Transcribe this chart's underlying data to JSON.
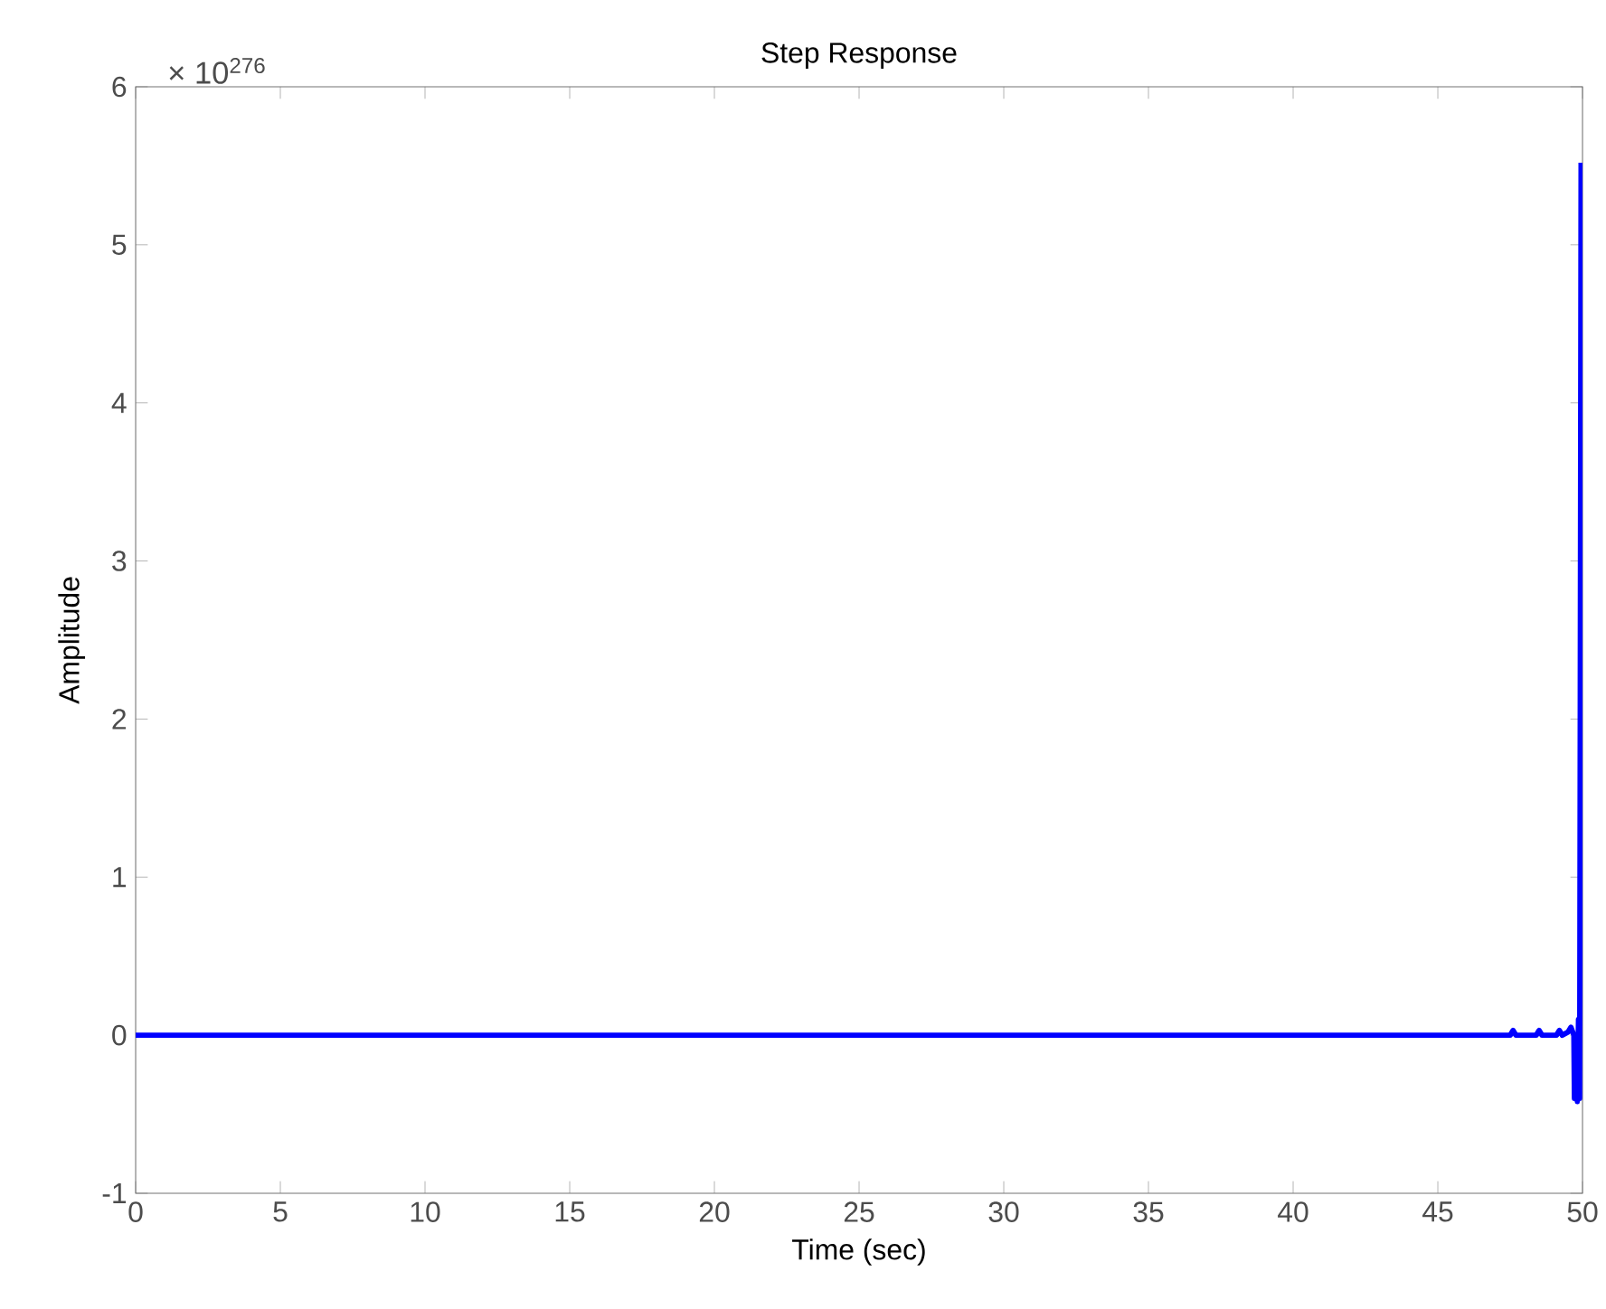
{
  "chart_data": {
    "type": "line",
    "title": "Step Response",
    "xlabel": "Time (sec)",
    "ylabel": "Amplitude",
    "annotations": [
      "× 10$^{276}$"
    ],
    "xlim": [
      0,
      50
    ],
    "ylim": [
      -1,
      6
    ],
    "xticks": [
      0,
      5,
      10,
      15,
      20,
      25,
      30,
      35,
      40,
      45,
      50
    ],
    "yticks": [
      -1,
      0,
      1,
      2,
      3,
      4,
      5,
      6
    ],
    "grid": false,
    "marker": "none",
    "line_style": "solid",
    "series": [
      {
        "color": "#0000ff",
        "x": [
          0,
          47.5,
          47.6,
          47.7,
          48.4,
          48.5,
          48.6,
          49.1,
          49.2,
          49.3,
          49.5,
          49.6,
          49.7,
          49.72,
          49.78,
          49.82,
          49.86,
          49.9,
          49.95
        ],
        "values": [
          0,
          0,
          0.03,
          0,
          0,
          0.03,
          0,
          0,
          0.03,
          0,
          0.02,
          0.05,
          0,
          -0.4,
          -0.35,
          -0.42,
          0.1,
          -0.4,
          5.52
        ]
      }
    ]
  }
}
